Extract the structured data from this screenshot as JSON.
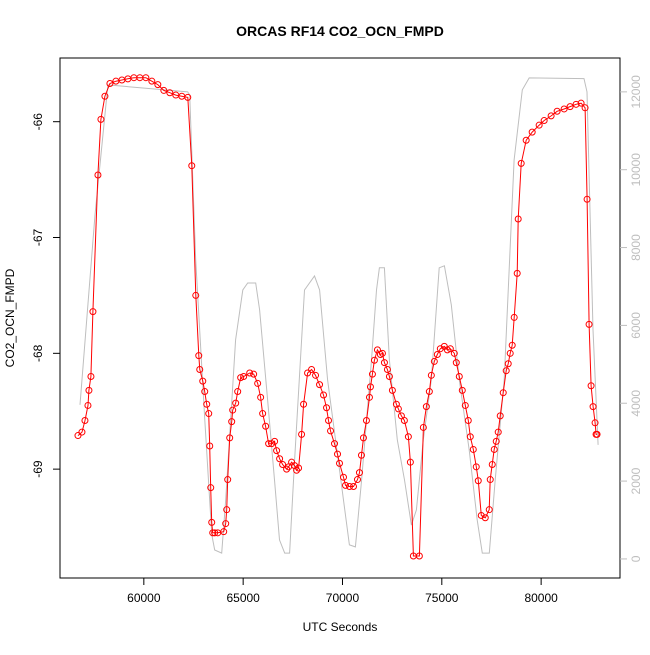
{
  "chart_data": {
    "type": "line",
    "title": "ORCAS RF14 CO2_OCN_FMPD",
    "x_label": "UTC Seconds",
    "y_label": "CO2_OCN_FMPD",
    "xlim": [
      55780,
      83970
    ],
    "ylim": [
      -69.94,
      -65.45
    ],
    "y2lim": [
      -490,
      12870
    ],
    "xticks": [
      60000,
      65000,
      70000,
      75000,
      80000
    ],
    "yticks": [
      -66,
      -67,
      -68,
      -69
    ],
    "y2ticks": [
      0,
      2000,
      4000,
      6000,
      8000,
      10000,
      12000
    ],
    "y2_color": "#bebebe",
    "series": [
      {
        "color": "#ff0000",
        "markers": true,
        "x": [
          56685,
          56885,
          57036,
          57187,
          57237,
          57338,
          57438,
          57690,
          57840,
          58041,
          58293,
          58594,
          58896,
          59197,
          59499,
          59800,
          60102,
          60403,
          60705,
          61006,
          61308,
          61609,
          61911,
          62212,
          62413,
          62614,
          62765,
          62815,
          62966,
          63066,
          63167,
          63267,
          63318,
          63368,
          63418,
          63468,
          63569,
          63720,
          64021,
          64122,
          64172,
          64222,
          64323,
          64423,
          64473,
          64624,
          64725,
          64875,
          65026,
          65328,
          65529,
          65730,
          65880,
          65981,
          66132,
          66282,
          66433,
          66584,
          66684,
          66835,
          66986,
          67187,
          67287,
          67438,
          67589,
          67689,
          67790,
          67941,
          68041,
          68242,
          68443,
          68644,
          68845,
          69046,
          69197,
          69297,
          69398,
          69599,
          69750,
          69850,
          70051,
          70152,
          70353,
          70554,
          70755,
          70855,
          70956,
          71056,
          71207,
          71358,
          71408,
          71508,
          71609,
          71760,
          71910,
          72011,
          72112,
          72262,
          72363,
          72513,
          72714,
          72815,
          72966,
          73116,
          73317,
          73418,
          73569,
          73870,
          74071,
          74222,
          74373,
          74473,
          74624,
          74775,
          74925,
          75126,
          75277,
          75428,
          75629,
          75729,
          75880,
          76031,
          76182,
          76332,
          76433,
          76584,
          76734,
          76835,
          76986,
          77187,
          77388,
          77438,
          77539,
          77639,
          77740,
          77840,
          77941,
          78092,
          78242,
          78343,
          78443,
          78544,
          78644,
          78795,
          78845,
          78996,
          79247,
          79549,
          79900,
          80152,
          80503,
          80805,
          81157,
          81458,
          81760,
          82011,
          82212,
          82313,
          82413,
          82514,
          82614,
          82715,
          82765,
          82815
        ],
        "values": [
          -68.71,
          -68.68,
          -68.58,
          -68.45,
          -68.32,
          -68.2,
          -67.64,
          -66.46,
          -65.98,
          -65.78,
          -65.67,
          -65.65,
          -65.64,
          -65.63,
          -65.62,
          -65.62,
          -65.62,
          -65.65,
          -65.68,
          -65.73,
          -65.75,
          -65.77,
          -65.78,
          -65.79,
          -66.38,
          -67.5,
          -68.02,
          -68.14,
          -68.24,
          -68.33,
          -68.44,
          -68.52,
          -68.8,
          -69.16,
          -69.46,
          -69.55,
          -69.55,
          -69.55,
          -69.54,
          -69.47,
          -69.35,
          -69.09,
          -68.73,
          -68.59,
          -68.49,
          -68.43,
          -68.33,
          -68.21,
          -68.2,
          -68.17,
          -68.18,
          -68.26,
          -68.38,
          -68.52,
          -68.63,
          -68.78,
          -68.78,
          -68.76,
          -68.84,
          -68.91,
          -68.96,
          -69.0,
          -68.98,
          -68.94,
          -68.97,
          -69.01,
          -68.99,
          -68.7,
          -68.44,
          -68.17,
          -68.14,
          -68.19,
          -68.27,
          -68.36,
          -68.47,
          -68.58,
          -68.67,
          -68.78,
          -68.87,
          -68.95,
          -69.07,
          -69.14,
          -69.15,
          -69.15,
          -69.09,
          -69.03,
          -68.88,
          -68.73,
          -68.58,
          -68.38,
          -68.29,
          -68.18,
          -68.06,
          -67.97,
          -68.01,
          -68.0,
          -68.08,
          -68.14,
          -68.2,
          -68.32,
          -68.44,
          -68.48,
          -68.54,
          -68.58,
          -68.72,
          -68.94,
          -69.75,
          -69.75,
          -68.64,
          -68.46,
          -68.33,
          -68.19,
          -68.07,
          -68.01,
          -67.96,
          -67.94,
          -67.97,
          -67.96,
          -68.0,
          -68.08,
          -68.2,
          -68.32,
          -68.45,
          -68.58,
          -68.72,
          -68.83,
          -68.98,
          -69.1,
          -69.4,
          -69.42,
          -69.35,
          -69.09,
          -68.96,
          -68.83,
          -68.76,
          -68.68,
          -68.54,
          -68.34,
          -68.15,
          -68.09,
          -68.0,
          -67.93,
          -67.69,
          -67.31,
          -66.84,
          -66.36,
          -66.16,
          -66.09,
          -66.03,
          -65.99,
          -65.95,
          -65.91,
          -65.89,
          -65.87,
          -65.85,
          -65.84,
          -65.88,
          -66.67,
          -67.75,
          -68.28,
          -68.46,
          -68.6,
          -68.7,
          -68.7
        ]
      },
      {
        "color": "#bebebe",
        "axis": "y2",
        "markers": false,
        "x": [
          56785,
          57540,
          58190,
          62210,
          62310,
          62610,
          63070,
          63420,
          63570,
          63920,
          64120,
          64620,
          64980,
          65230,
          65630,
          65830,
          66230,
          66580,
          66830,
          67090,
          67340,
          67590,
          68090,
          68590,
          68850,
          69250,
          69850,
          70350,
          70650,
          70960,
          71460,
          71710,
          71860,
          72110,
          72360,
          72760,
          73120,
          73470,
          73720,
          74070,
          74470,
          74870,
          75130,
          75480,
          75880,
          76380,
          76780,
          77040,
          77390,
          77690,
          78140,
          78640,
          79050,
          79400,
          82160,
          82310,
          82610,
          82870
        ],
        "values": [
          3960,
          8840,
          12180,
          12000,
          11920,
          7680,
          3570,
          620,
          230,
          150,
          1520,
          5630,
          6910,
          7090,
          7090,
          6400,
          4090,
          2030,
          490,
          150,
          150,
          2540,
          6910,
          7270,
          6910,
          4600,
          2290,
          360,
          310,
          2030,
          5110,
          6910,
          7480,
          7480,
          5110,
          3060,
          2030,
          870,
          1260,
          3060,
          4600,
          7480,
          7530,
          6530,
          4600,
          2800,
          1000,
          150,
          150,
          2030,
          4600,
          10250,
          12050,
          12360,
          12340,
          12000,
          5890,
          2930
        ]
      }
    ]
  }
}
